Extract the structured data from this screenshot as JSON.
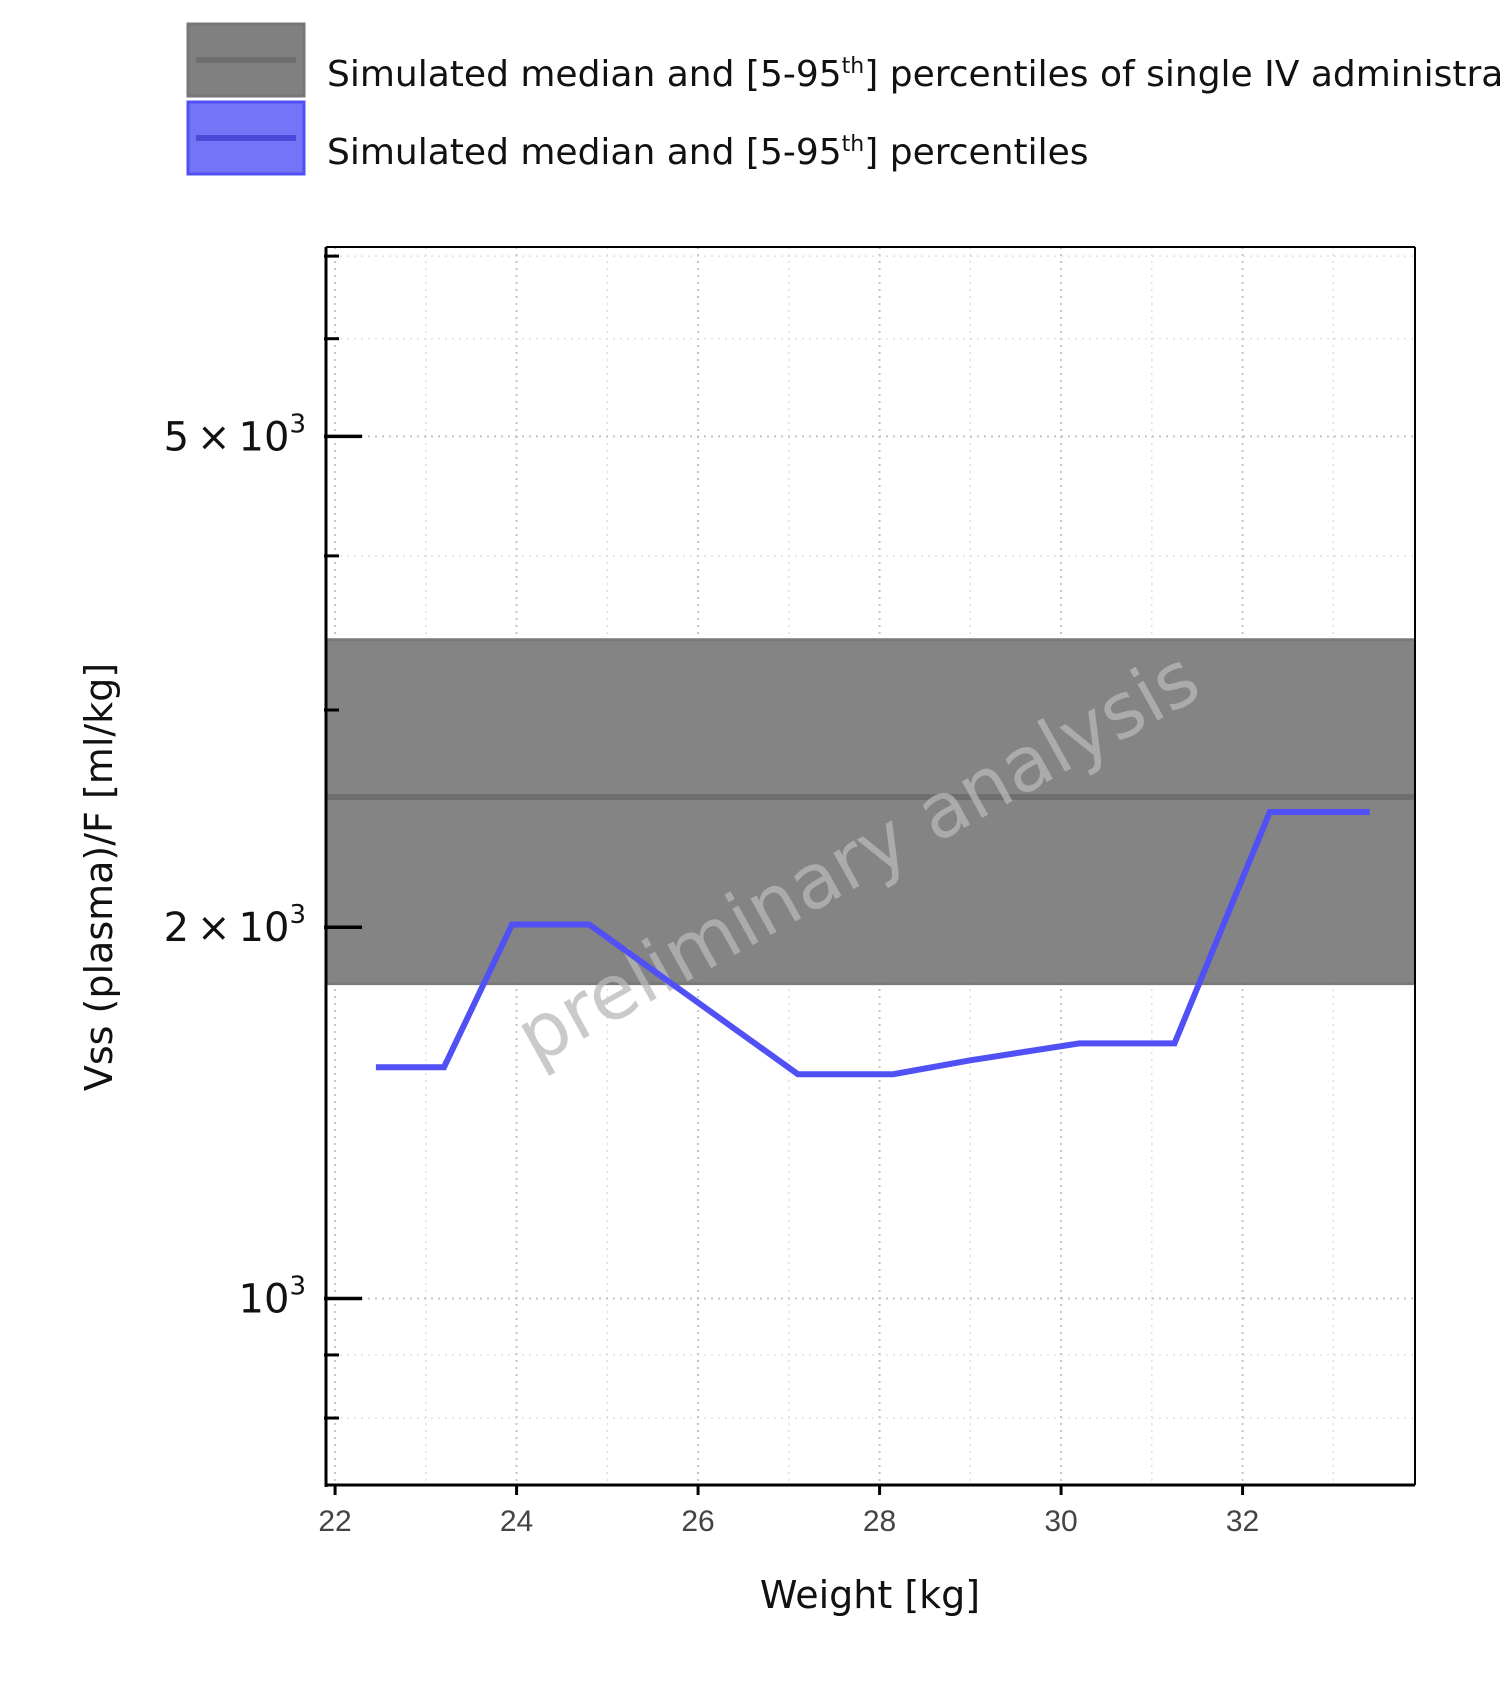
{
  "chart_data": {
    "type": "line",
    "title": "",
    "xlabel": "Weight [kg]",
    "ylabel": "Vss (plasma)/F [ml/kg]",
    "watermark": "preliminary analysis",
    "yscale": "log",
    "xlim": [
      21.9,
      33.9
    ],
    "ylim": [
      706,
      7120
    ],
    "grid": true,
    "legend_position": "top-left",
    "xticks": [
      {
        "value": 22,
        "label": "22"
      },
      {
        "value": 24,
        "label": "24"
      },
      {
        "value": 26,
        "label": "26"
      },
      {
        "value": 28,
        "label": "28"
      },
      {
        "value": 30,
        "label": "30"
      },
      {
        "value": 32,
        "label": "32"
      }
    ],
    "yticks_major": [
      {
        "value": 1000,
        "base": "10",
        "exp": "3"
      },
      {
        "value": 2000,
        "base": "2 × 10",
        "exp": "3"
      },
      {
        "value": 5000,
        "base": "5 × 10",
        "exp": "3"
      }
    ],
    "yticks_minor": [
      800,
      900,
      3000,
      4000,
      6000,
      7000
    ],
    "band": {
      "legend_main": "Simulated median and [5-95",
      "legend_sup": "th",
      "legend_tail": "] percentiles of single IV administration",
      "median": 2550,
      "lower": 1800,
      "upper": 3420,
      "fill_color": "#808080",
      "line_color": "#7a7a7a"
    },
    "series": [
      {
        "legend_main": "Simulated median and [5-95",
        "legend_sup": "th",
        "legend_tail": "] percentiles",
        "color": "#5050f5",
        "x": [
          22.45,
          23.2,
          23.95,
          24.8,
          25.8,
          27.1,
          28.15,
          29.0,
          30.2,
          31.25,
          32.3,
          33.4
        ],
        "y": [
          1540,
          1540,
          2010,
          2010,
          1780,
          1520,
          1520,
          1560,
          1610,
          1610,
          2480,
          2480
        ]
      }
    ]
  }
}
